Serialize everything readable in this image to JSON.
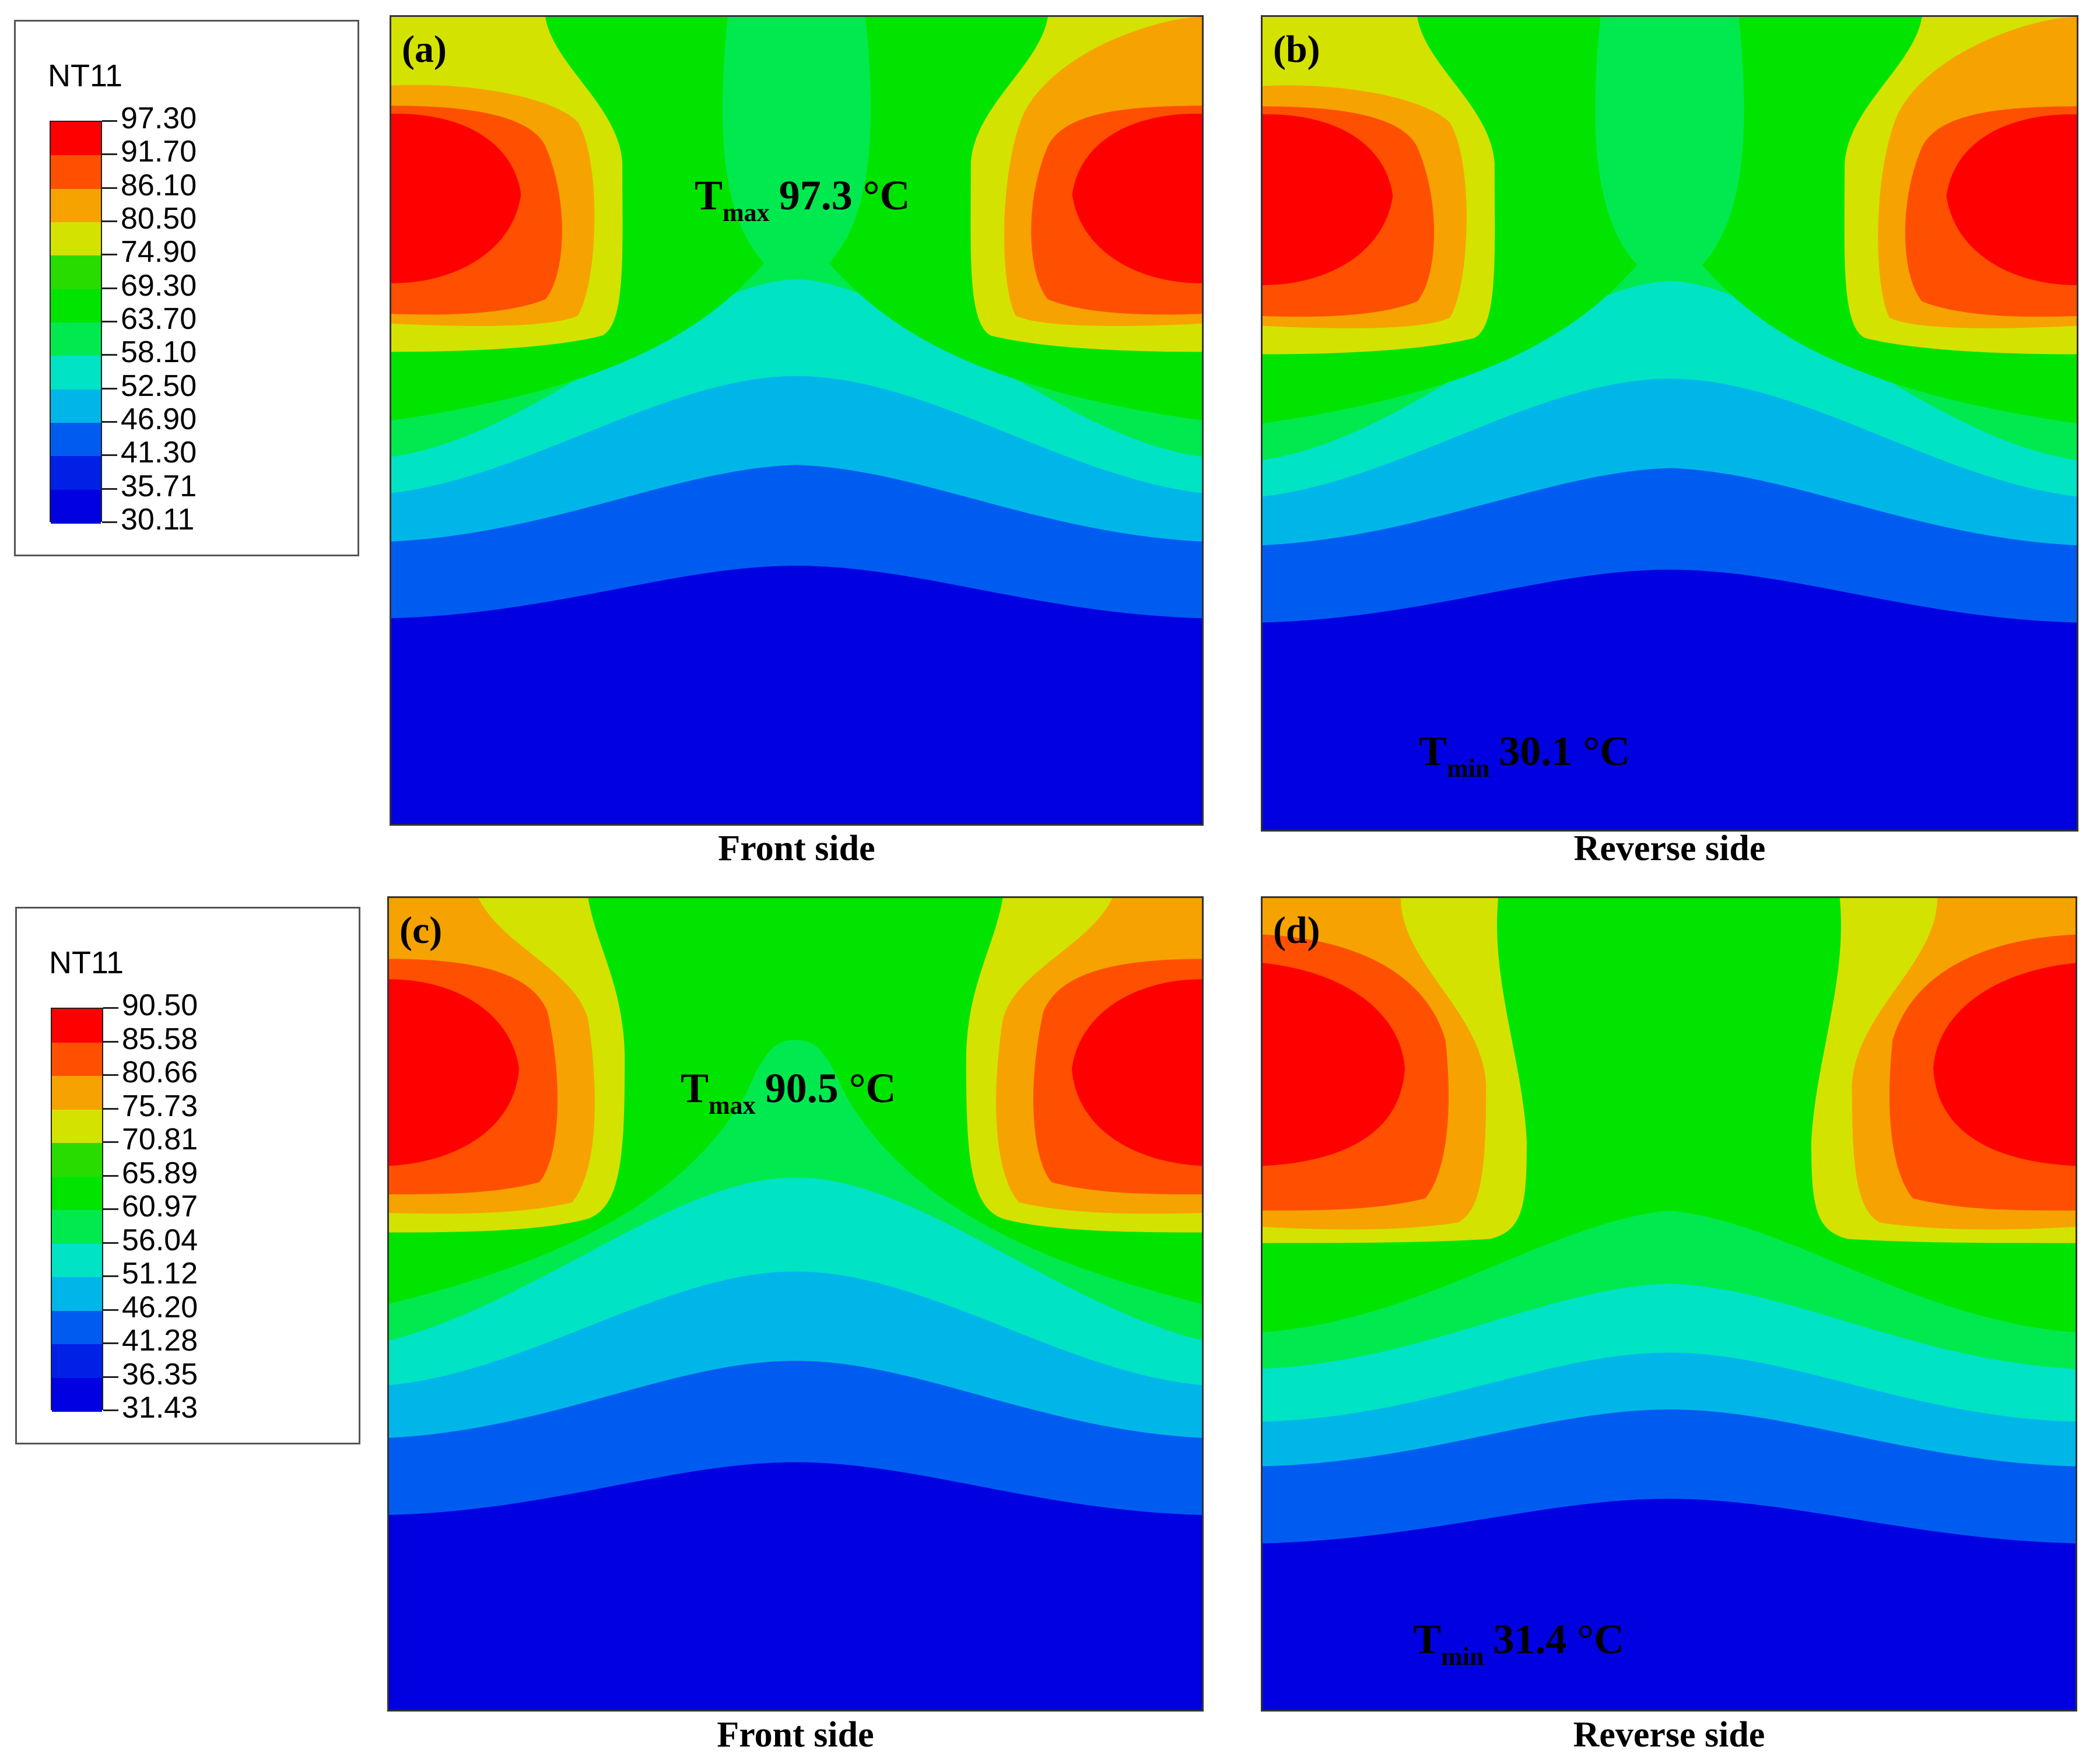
{
  "chart_data": [
    {
      "type": "heatmap",
      "figure": "FE steady-state temperature contour (Abaqus NT11), case 1",
      "legend": {
        "title": "NT11",
        "levels": [
          "97.30",
          "91.70",
          "86.10",
          "80.50",
          "74.90",
          "69.30",
          "63.70",
          "58.10",
          "52.50",
          "46.90",
          "41.30",
          "35.71",
          "30.11"
        ],
        "band_colors": [
          "#ff0000",
          "#fe5000",
          "#f6a200",
          "#d4e200",
          "#28dc00",
          "#00e400",
          "#00ea4f",
          "#00e3c5",
          "#00b6e9",
          "#005cf0",
          "#0020e6",
          "#0000e1"
        ]
      },
      "panels": [
        {
          "letter": "(a)",
          "caption": "Front side",
          "annotation": {
            "symbol": "T",
            "sub": "max",
            "value": "97.3 °C",
            "temperature": 97.3
          }
        },
        {
          "letter": "(b)",
          "caption": "Reverse side",
          "annotation": {
            "symbol": "T",
            "sub": "min",
            "value": "30.1 °C",
            "temperature": 30.1
          }
        }
      ]
    },
    {
      "type": "heatmap",
      "figure": "FE steady-state temperature contour (Abaqus NT11), case 2",
      "legend": {
        "title": "NT11",
        "levels": [
          "90.50",
          "85.58",
          "80.66",
          "75.73",
          "70.81",
          "65.89",
          "60.97",
          "56.04",
          "51.12",
          "46.20",
          "41.28",
          "36.35",
          "31.43"
        ],
        "band_colors": [
          "#ff0000",
          "#fe5000",
          "#f6a200",
          "#d4e200",
          "#28dc00",
          "#00e400",
          "#00ea4f",
          "#00e3c5",
          "#00b6e9",
          "#005cf0",
          "#0020e6",
          "#0000e1"
        ]
      },
      "panels": [
        {
          "letter": "(c)",
          "caption": "Front side",
          "annotation": {
            "symbol": "T",
            "sub": "max",
            "value": "90.5 °C",
            "temperature": 90.5
          }
        },
        {
          "letter": "(d)",
          "caption": "Reverse side",
          "annotation": {
            "symbol": "T",
            "sub": "min",
            "value": "31.4 °C",
            "temperature": 31.4
          }
        }
      ]
    }
  ],
  "field_colors": {
    "hot": "#ff0000",
    "orange_red": "#fe5000",
    "orange": "#f6a200",
    "yellow_green": "#d4e200",
    "green": "#00e400",
    "green_cyan": "#00ea4f",
    "cyan": "#00e3c5",
    "light_blue": "#00b6e9",
    "mid_blue": "#005cf0",
    "deep_blue": "#0000e1"
  }
}
